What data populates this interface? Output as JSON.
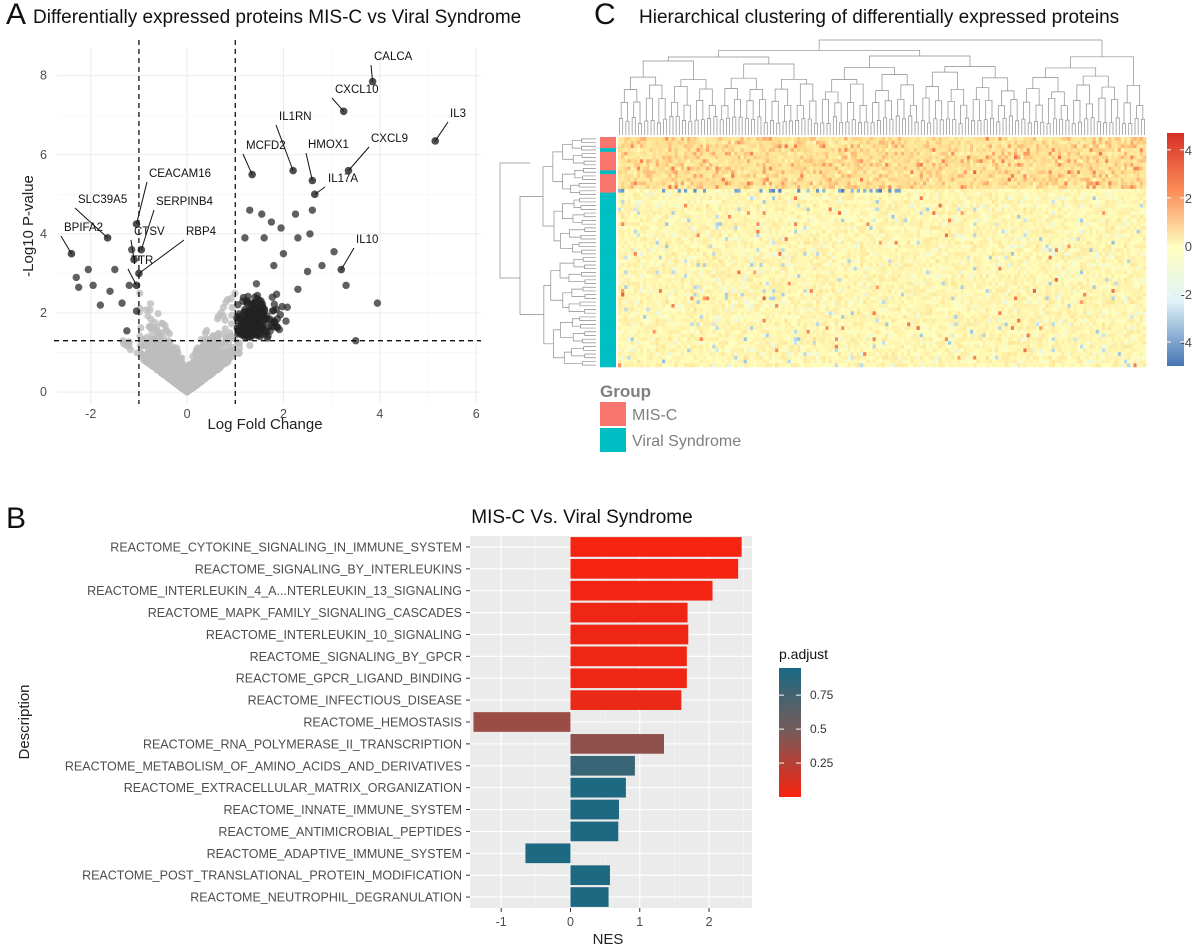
{
  "panels": {
    "a": {
      "letter": "A",
      "title": "Differentially expressed proteins MIS-C vs Viral Syndrome"
    },
    "b": {
      "letter": "B"
    },
    "c": {
      "letter": "C",
      "title": "Hierarchical clustering of differentially expressed proteins"
    }
  },
  "chart_data": [
    {
      "id": "volcano",
      "type": "scatter",
      "title": "Differentially expressed proteins MIS-C vs Viral Syndrome",
      "xlabel": "Log Fold Change",
      "ylabel": "-Log10 P-value",
      "xlim": [
        -2.7,
        6.1
      ],
      "ylim": [
        -0.3,
        8.7
      ],
      "xticks": [
        -2,
        0,
        2,
        4,
        6
      ],
      "yticks": [
        0,
        2,
        4,
        6,
        8
      ],
      "thresholds": {
        "logfc": [
          -1,
          1
        ],
        "neglog10p": 1.3
      },
      "grid": true,
      "labeled_points": [
        {
          "label": "CALCA",
          "x": 3.85,
          "y": 7.85
        },
        {
          "label": "CXCL10",
          "x": 3.25,
          "y": 7.1
        },
        {
          "label": "IL3",
          "x": 5.15,
          "y": 6.35
        },
        {
          "label": "IL1RN",
          "x": 2.2,
          "y": 5.6
        },
        {
          "label": "HMOX1",
          "x": 2.6,
          "y": 5.35
        },
        {
          "label": "CXCL9",
          "x": 3.35,
          "y": 5.6
        },
        {
          "label": "MCFD2",
          "x": 1.35,
          "y": 5.5
        },
        {
          "label": "IL17A",
          "x": 2.65,
          "y": 5.0
        },
        {
          "label": "IL10",
          "x": 3.2,
          "y": 3.1
        },
        {
          "label": "CEACAM16",
          "x": -1.05,
          "y": 4.25
        },
        {
          "label": "SERPINB4",
          "x": -0.95,
          "y": 3.6
        },
        {
          "label": "SLC39A5",
          "x": -1.65,
          "y": 3.9
        },
        {
          "label": "BPIFA2",
          "x": -2.4,
          "y": 3.5
        },
        {
          "label": "CTSV",
          "x": -1.1,
          "y": 3.35
        },
        {
          "label": "RBP4",
          "x": -1.0,
          "y": 3.0
        },
        {
          "label": "TTR",
          "x": -1.05,
          "y": 2.7
        }
      ]
    },
    {
      "id": "heatmap",
      "type": "heatmap",
      "title": "Hierarchical clustering of differentially expressed proteins",
      "color_scale": {
        "min": -5,
        "max": 4.7,
        "ticks": [
          4,
          2,
          0,
          -2,
          -4
        ],
        "low": "#4575b4",
        "mid": "#ffffbf",
        "high": "#d73027"
      },
      "groups": [
        "MIS-C",
        "Viral Syndrome"
      ],
      "group_title": "Group",
      "group_colors": {
        "MIS-C": "#f8766d",
        "Viral Syndrome": "#00bfc4"
      }
    },
    {
      "id": "gsea",
      "type": "bar",
      "orientation": "horizontal",
      "title": "MIS-C Vs. Viral Syndrome",
      "xlabel": "NES",
      "ylabel": "Description",
      "xlim": [
        -1.45,
        2.62
      ],
      "xticks": [
        -1,
        0,
        1,
        2
      ],
      "legend": {
        "title": "p.adjust",
        "ticks": [
          0.75,
          0.5,
          0.25
        ],
        "range": [
          0.0,
          0.95
        ],
        "low_color": "#f8230f",
        "high_color": "#1a6a84",
        "position": "right"
      },
      "categories": [
        "REACTOME_CYTOKINE_SIGNALING_IN_IMMUNE_SYSTEM",
        "REACTOME_SIGNALING_BY_INTERLEUKINS",
        "REACTOME_INTERLEUKIN_4_A...NTERLEUKIN_13_SIGNALING",
        "REACTOME_MAPK_FAMILY_SIGNALING_CASCADES",
        "REACTOME_INTERLEUKIN_10_SIGNALING",
        "REACTOME_SIGNALING_BY_GPCR",
        "REACTOME_GPCR_LIGAND_BINDING",
        "REACTOME_INFECTIOUS_DISEASE",
        "REACTOME_HEMOSTASIS",
        "REACTOME_RNA_POLYMERASE_II_TRANSCRIPTION",
        "REACTOME_METABOLISM_OF_AMINO_ACIDS_AND_DERIVATIVES",
        "REACTOME_EXTRACELLULAR_MATRIX_ORGANIZATION",
        "REACTOME_INNATE_IMMUNE_SYSTEM",
        "REACTOME_ANTIMICROBIAL_PEPTIDES",
        "REACTOME_ADAPTIVE_IMMUNE_SYSTEM",
        "REACTOME_POST_TRANSLATIONAL_PROTEIN_MODIFICATION",
        "REACTOME_NEUTROPHIL_DEGRANULATION"
      ],
      "values": [
        2.47,
        2.42,
        2.05,
        1.69,
        1.7,
        1.68,
        1.68,
        1.6,
        -1.4,
        1.35,
        0.93,
        0.8,
        0.7,
        0.69,
        -0.65,
        0.57,
        0.55
      ],
      "p_adjust": [
        0.01,
        0.01,
        0.02,
        0.03,
        0.03,
        0.03,
        0.03,
        0.05,
        0.35,
        0.4,
        0.8,
        0.93,
        0.93,
        0.93,
        0.93,
        0.93,
        0.93
      ]
    }
  ]
}
